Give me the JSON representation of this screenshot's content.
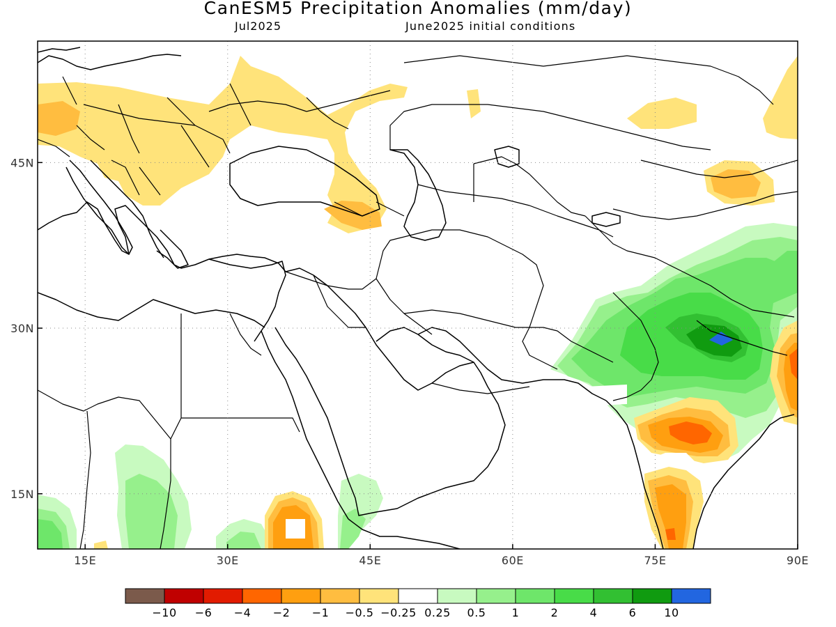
{
  "title": "CanESM5 Precipitation Anomalies (mm/day)",
  "subtitle_month": "Jul2025",
  "subtitle_ic": "June2025 initial conditions",
  "lon_ticks": [
    {
      "value": 15,
      "label": "15E"
    },
    {
      "value": 30,
      "label": "30E"
    },
    {
      "value": 45,
      "label": "45E"
    },
    {
      "value": 60,
      "label": "60E"
    },
    {
      "value": 75,
      "label": "75E"
    },
    {
      "value": 90,
      "label": "90E"
    }
  ],
  "lat_ticks": [
    {
      "value": 45,
      "label": "45N"
    },
    {
      "value": 30,
      "label": "30N"
    },
    {
      "value": 15,
      "label": "15N"
    }
  ],
  "extent": {
    "lon_min": 10,
    "lon_max": 90,
    "lat_min": 10,
    "lat_max": 56
  },
  "colorbar": {
    "colors": [
      "#7b5a4b",
      "#c00000",
      "#e21b00",
      "#ff6600",
      "#ff9f10",
      "#ffbd40",
      "#ffe37a",
      "#ffffff",
      "#c8fac0",
      "#96f08c",
      "#6ee66a",
      "#48dc48",
      "#32c032",
      "#109b10",
      "#2266e0"
    ],
    "labels": [
      "-10",
      "-6",
      "-4",
      "-2",
      "-1",
      "-0.5",
      "-0.25",
      "0.25",
      "0.5",
      "1",
      "2",
      "4",
      "6",
      "10"
    ]
  }
}
